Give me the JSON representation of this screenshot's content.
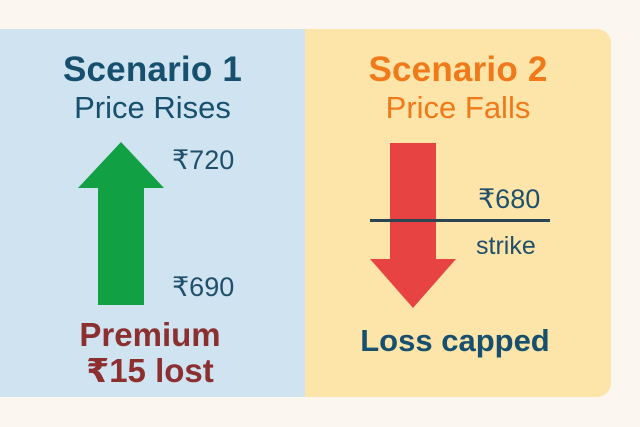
{
  "scenario1": {
    "title": "Scenario 1",
    "subtitle": "Price Rises",
    "high_price": "₹720",
    "low_price": "₹690",
    "note_line1": "Premium",
    "note_line2": "₹15 lost"
  },
  "scenario2": {
    "title": "Scenario 2",
    "subtitle": "Price Falls",
    "strike_price": "₹680",
    "strike_label": "strike",
    "note": "Loss capped"
  },
  "colors": {
    "left_panel": "#cfe3f1",
    "right_panel": "#fde4a9",
    "up_arrow": "#11a043",
    "down_arrow": "#e84343"
  },
  "icons": {
    "up": "up-arrow-icon",
    "down": "down-arrow-icon"
  }
}
